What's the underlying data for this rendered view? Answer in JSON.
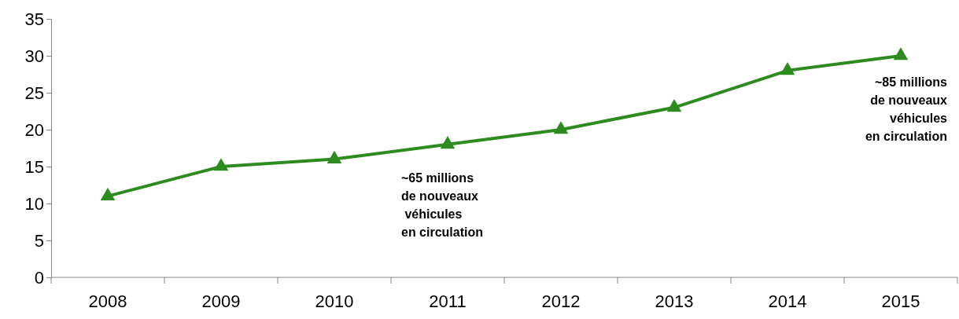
{
  "chart_data": {
    "type": "line",
    "categories": [
      "2008",
      "2009",
      "2010",
      "2011",
      "2012",
      "2013",
      "2014",
      "2015"
    ],
    "series": [
      {
        "color": "#2e8b1f",
        "values": [
          11,
          15,
          16,
          18,
          20,
          23,
          28,
          30
        ]
      }
    ],
    "ylim": [
      0,
      35
    ],
    "yticks": [
      0,
      5,
      10,
      15,
      20,
      25,
      30,
      35
    ],
    "marker": "triangle",
    "line_style": "solid",
    "grid": false,
    "annotations": [
      "~65 millions\nde nouveaux\n véhicules\nen circulation",
      "~85 millions\nde nouveaux\nvéhicules\nen circulation"
    ]
  }
}
